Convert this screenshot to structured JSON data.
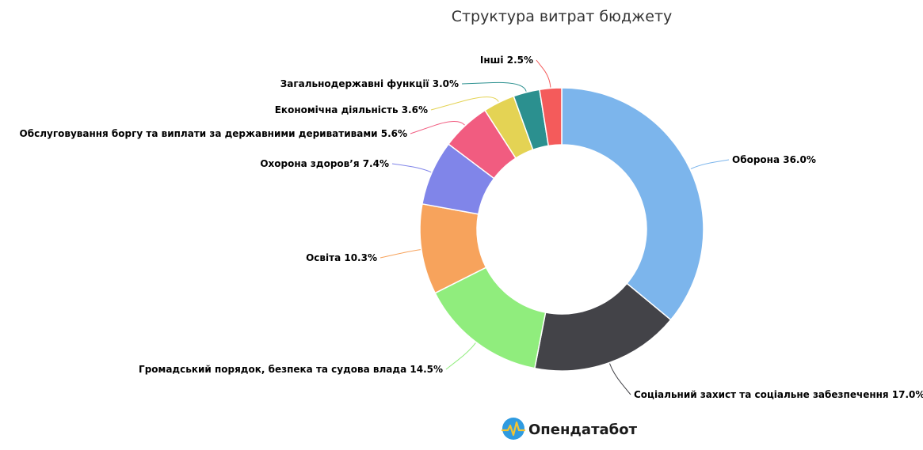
{
  "chart_data": {
    "type": "pie",
    "title": "Структура витрат бюджету",
    "series": [
      {
        "name": "",
        "slices": [
          {
            "label": "Оборона",
            "value": 36.0,
            "text": "Оборона 36.0%",
            "color": "#7cb5ec"
          },
          {
            "label": "Соціальний захист та соціальне забезпечення",
            "value": 17.0,
            "text": "Соціальний захист та соціальне забезпечення 17.0%",
            "color": "#434348"
          },
          {
            "label": "Громадський порядок, безпека та судова влада",
            "value": 14.5,
            "text": "Громадський порядок, безпека та судова влада 14.5%",
            "color": "#90ed7d"
          },
          {
            "label": "Освіта",
            "value": 10.3,
            "text": "Освіта 10.3%",
            "color": "#f7a35c"
          },
          {
            "label": "Охорона здоров’я",
            "value": 7.4,
            "text": "Охорона здоров’я 7.4%",
            "color": "#8085e9"
          },
          {
            "label": "Обслуговування боргу та виплати за державними деривативами",
            "value": 5.6,
            "text": "Обслуговування боргу та виплати за державними деривативами 5.6%",
            "color": "#f15c80"
          },
          {
            "label": "Економічна діяльність",
            "value": 3.6,
            "text": "Економічна діяльність 3.6%",
            "color": "#e4d354"
          },
          {
            "label": "Загальнодержавні функції",
            "value": 3.0,
            "text": "Загальнодержавні функції 3.0%",
            "color": "#2b908f"
          },
          {
            "label": "Інші",
            "value": 2.5,
            "text": "Інші 2.5%",
            "color": "#f45b5b"
          }
        ]
      }
    ],
    "donut": true,
    "legend": "none"
  },
  "brand": {
    "name": "Опендатабот",
    "logo_colors": {
      "circle": "#2f9be0",
      "wave": "#f4c430"
    }
  }
}
